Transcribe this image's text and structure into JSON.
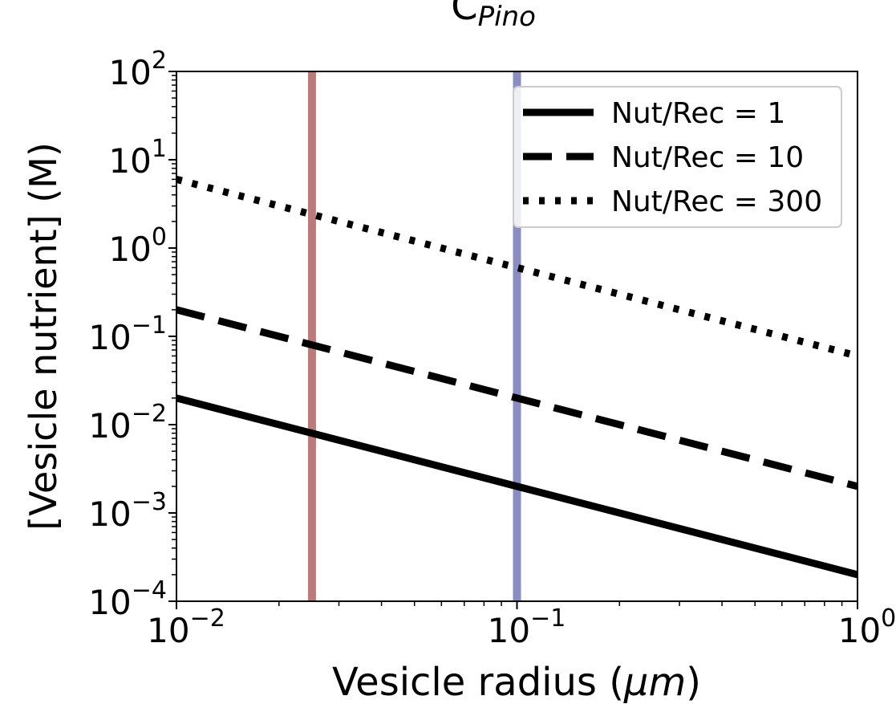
{
  "chart_data": {
    "type": "line",
    "title_base": "C",
    "title_sub": "Pino",
    "xlabel_text": "Vesicle radius (",
    "xlabel_mu": "μm",
    "xlabel_close": ")",
    "ylabel": "[Vesicle nutrient] (M)",
    "xscale": "log",
    "yscale": "log",
    "xlim": [
      0.01,
      1
    ],
    "ylim": [
      0.0001,
      100
    ],
    "x_ticks": [
      {
        "value": 0.01,
        "base": "10",
        "exp": "−2"
      },
      {
        "value": 0.1,
        "base": "10",
        "exp": "−1"
      },
      {
        "value": 1,
        "base": "10",
        "exp": "0"
      }
    ],
    "y_ticks": [
      {
        "value": 0.0001,
        "base": "10",
        "exp": "−4"
      },
      {
        "value": 0.001,
        "base": "10",
        "exp": "−3"
      },
      {
        "value": 0.01,
        "base": "10",
        "exp": "−2"
      },
      {
        "value": 0.1,
        "base": "10",
        "exp": "−1"
      },
      {
        "value": 1,
        "base": "10",
        "exp": "0"
      },
      {
        "value": 10,
        "base": "10",
        "exp": "1"
      },
      {
        "value": 100,
        "base": "10",
        "exp": "2"
      }
    ],
    "series": [
      {
        "name": "Nut/Rec = 1",
        "style": "solid",
        "x": [
          0.01,
          1
        ],
        "y": [
          0.02,
          0.0002
        ]
      },
      {
        "name": "Nut/Rec = 10",
        "style": "dashed",
        "x": [
          0.01,
          1
        ],
        "y": [
          0.2,
          0.002
        ]
      },
      {
        "name": "Nut/Rec = 300",
        "style": "dotted",
        "x": [
          0.01,
          1
        ],
        "y": [
          6,
          0.06
        ]
      }
    ],
    "vertical_lines": [
      {
        "x": 0.025,
        "color": "#bc7a7a"
      },
      {
        "x": 0.1,
        "color": "#8a8dc4"
      }
    ],
    "legend_position": "top-right",
    "grid": false
  }
}
